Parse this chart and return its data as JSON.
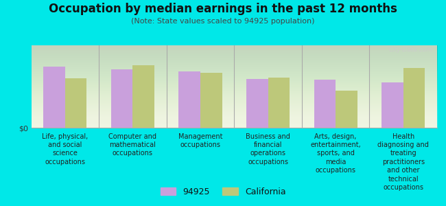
{
  "title": "Occupation by median earnings in the past 12 months",
  "subtitle": "(Note: State values scaled to 94925 population)",
  "background_color": "#00e8e8",
  "plot_bg_top": "#f0f4e0",
  "plot_bg_bottom": "#d8e8c0",
  "categories": [
    "Life, physical,\nand social\nscience\noccupations",
    "Computer and\nmathematical\noccupations",
    "Management\noccupations",
    "Business and\nfinancial\noperations\noccupations",
    "Arts, design,\nentertainment,\nsports, and\nmedia\noccupations",
    "Health\ndiagnosing and\ntreating\npractitioners\nand other\ntechnical\noccupations"
  ],
  "values_94925": [
    0.78,
    0.74,
    0.72,
    0.62,
    0.61,
    0.58
  ],
  "values_california": [
    0.63,
    0.8,
    0.7,
    0.64,
    0.47,
    0.76
  ],
  "color_94925": "#c9a0dc",
  "color_california": "#bdc87a",
  "ylabel": "$0",
  "legend_label_1": "94925",
  "legend_label_2": "California",
  "bar_width": 0.32,
  "watermark": "City-Data.com",
  "separator_color": "#aaaaaa",
  "title_fontsize": 12,
  "subtitle_fontsize": 8,
  "tick_fontsize": 7
}
